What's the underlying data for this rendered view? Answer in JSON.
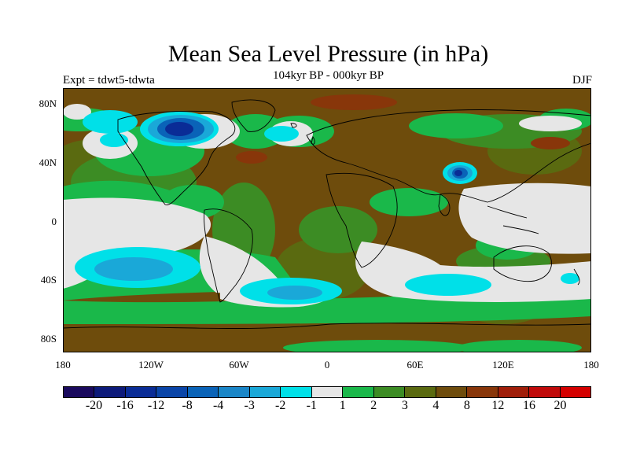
{
  "title": "Mean Sea Level Pressure (in hPa)",
  "subtitle": "104kyr BP - 000kyr BP",
  "experiment": "Expt = tdwt5-tdwta",
  "season": "DJF",
  "lat_labels": [
    "80N",
    "40N",
    "0",
    "40S",
    "80S"
  ],
  "lon_labels": [
    "180",
    "120W",
    "60W",
    "0",
    "60E",
    "120E",
    "180"
  ],
  "colorbar": {
    "labels": [
      "-20",
      "-16",
      "-12",
      "-8",
      "-4",
      "-3",
      "-2",
      "-1",
      "1",
      "2",
      "3",
      "4",
      "8",
      "12",
      "16",
      "20"
    ],
    "colors": [
      "#1a0a5e",
      "#0d1a7a",
      "#0a2c96",
      "#0a45a8",
      "#0a63b8",
      "#1a86c8",
      "#1aa8d8",
      "#00e0e8",
      "#e6e6e6",
      "#1ab84a",
      "#3c8c24",
      "#5a6a10",
      "#6e4c0c",
      "#88360a",
      "#a01e0a",
      "#c00a0a",
      "#d40000"
    ]
  }
}
